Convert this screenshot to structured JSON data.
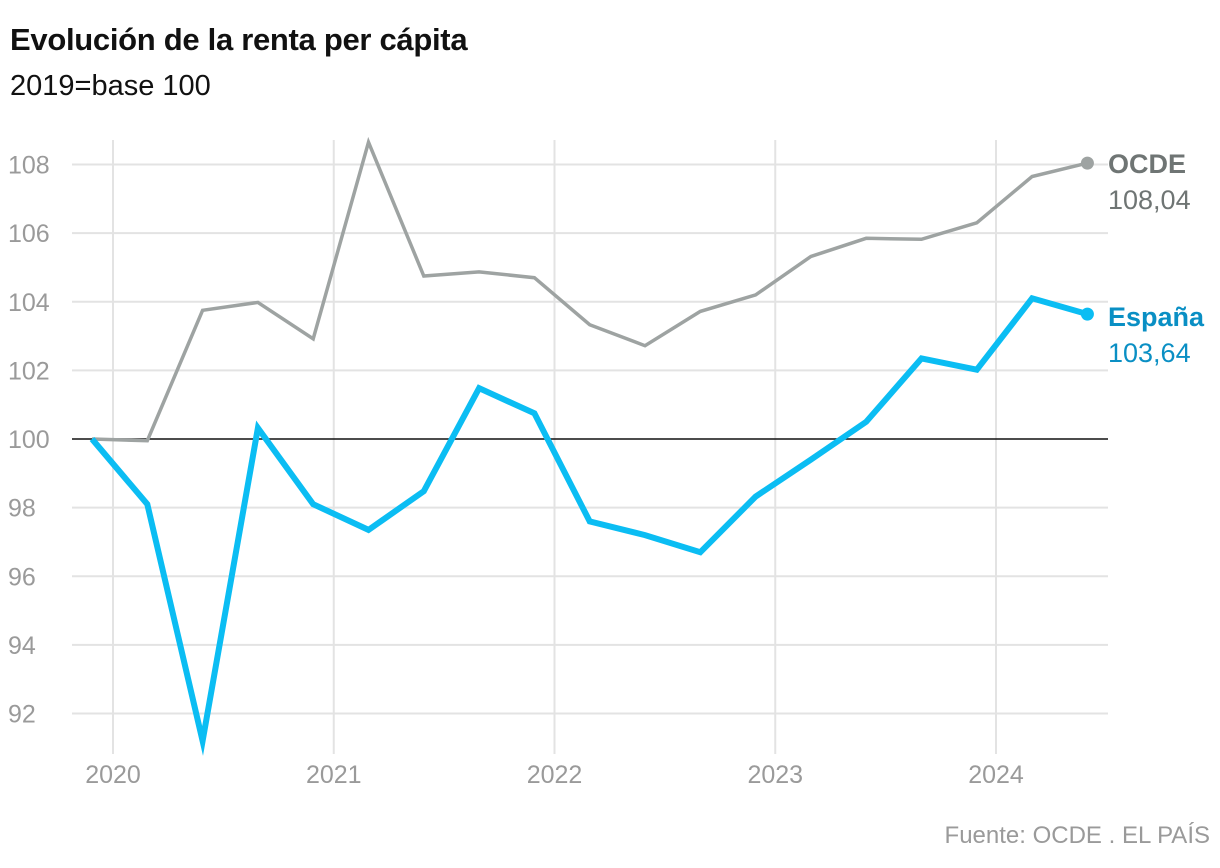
{
  "header": {
    "title": "Evolución de la renta per cápita",
    "subtitle": "2019=base 100"
  },
  "footer": {
    "source": "Fuente: OCDE . EL PAÍS"
  },
  "colors": {
    "ocde": "#9ea3a2",
    "ocde_label": "#6f7574",
    "espana": "#0bbdf3",
    "espana_label": "#0a8fc4",
    "grid": "#e3e3e3",
    "baseline": "#111111"
  },
  "chart_data": {
    "type": "line",
    "title": "Evolución de la renta per cápita",
    "subtitle": "2019=base 100",
    "xlabel": "",
    "ylabel": "",
    "x": [
      "2019-Q4",
      "2020-Q1",
      "2020-Q2",
      "2020-Q3",
      "2020-Q4",
      "2021-Q1",
      "2021-Q2",
      "2021-Q3",
      "2021-Q4",
      "2022-Q1",
      "2022-Q2",
      "2022-Q3",
      "2022-Q4",
      "2023-Q1",
      "2023-Q2",
      "2023-Q3",
      "2023-Q4",
      "2024-Q1",
      "2024-Q2"
    ],
    "xticks": [
      "2020",
      "2021",
      "2022",
      "2023",
      "2024"
    ],
    "yticks": [
      "92",
      "94",
      "96",
      "98",
      "100",
      "102",
      "104",
      "106",
      "108"
    ],
    "ylim": [
      91.2,
      108.7
    ],
    "baseline": 100,
    "series": [
      {
        "name": "OCDE",
        "key": "ocde",
        "end_label": "108,04",
        "values": [
          100.0,
          99.95,
          103.75,
          103.98,
          102.92,
          108.65,
          104.75,
          104.87,
          104.7,
          103.33,
          102.72,
          103.72,
          104.2,
          105.32,
          105.85,
          105.82,
          106.3,
          107.65,
          108.04
        ]
      },
      {
        "name": "España",
        "key": "espana",
        "end_label": "103,64",
        "values": [
          100.0,
          98.1,
          91.2,
          100.32,
          98.1,
          97.35,
          98.48,
          101.48,
          100.75,
          97.6,
          97.2,
          96.7,
          98.32,
          99.4,
          100.5,
          102.35,
          102.02,
          104.1,
          103.64
        ]
      }
    ]
  }
}
